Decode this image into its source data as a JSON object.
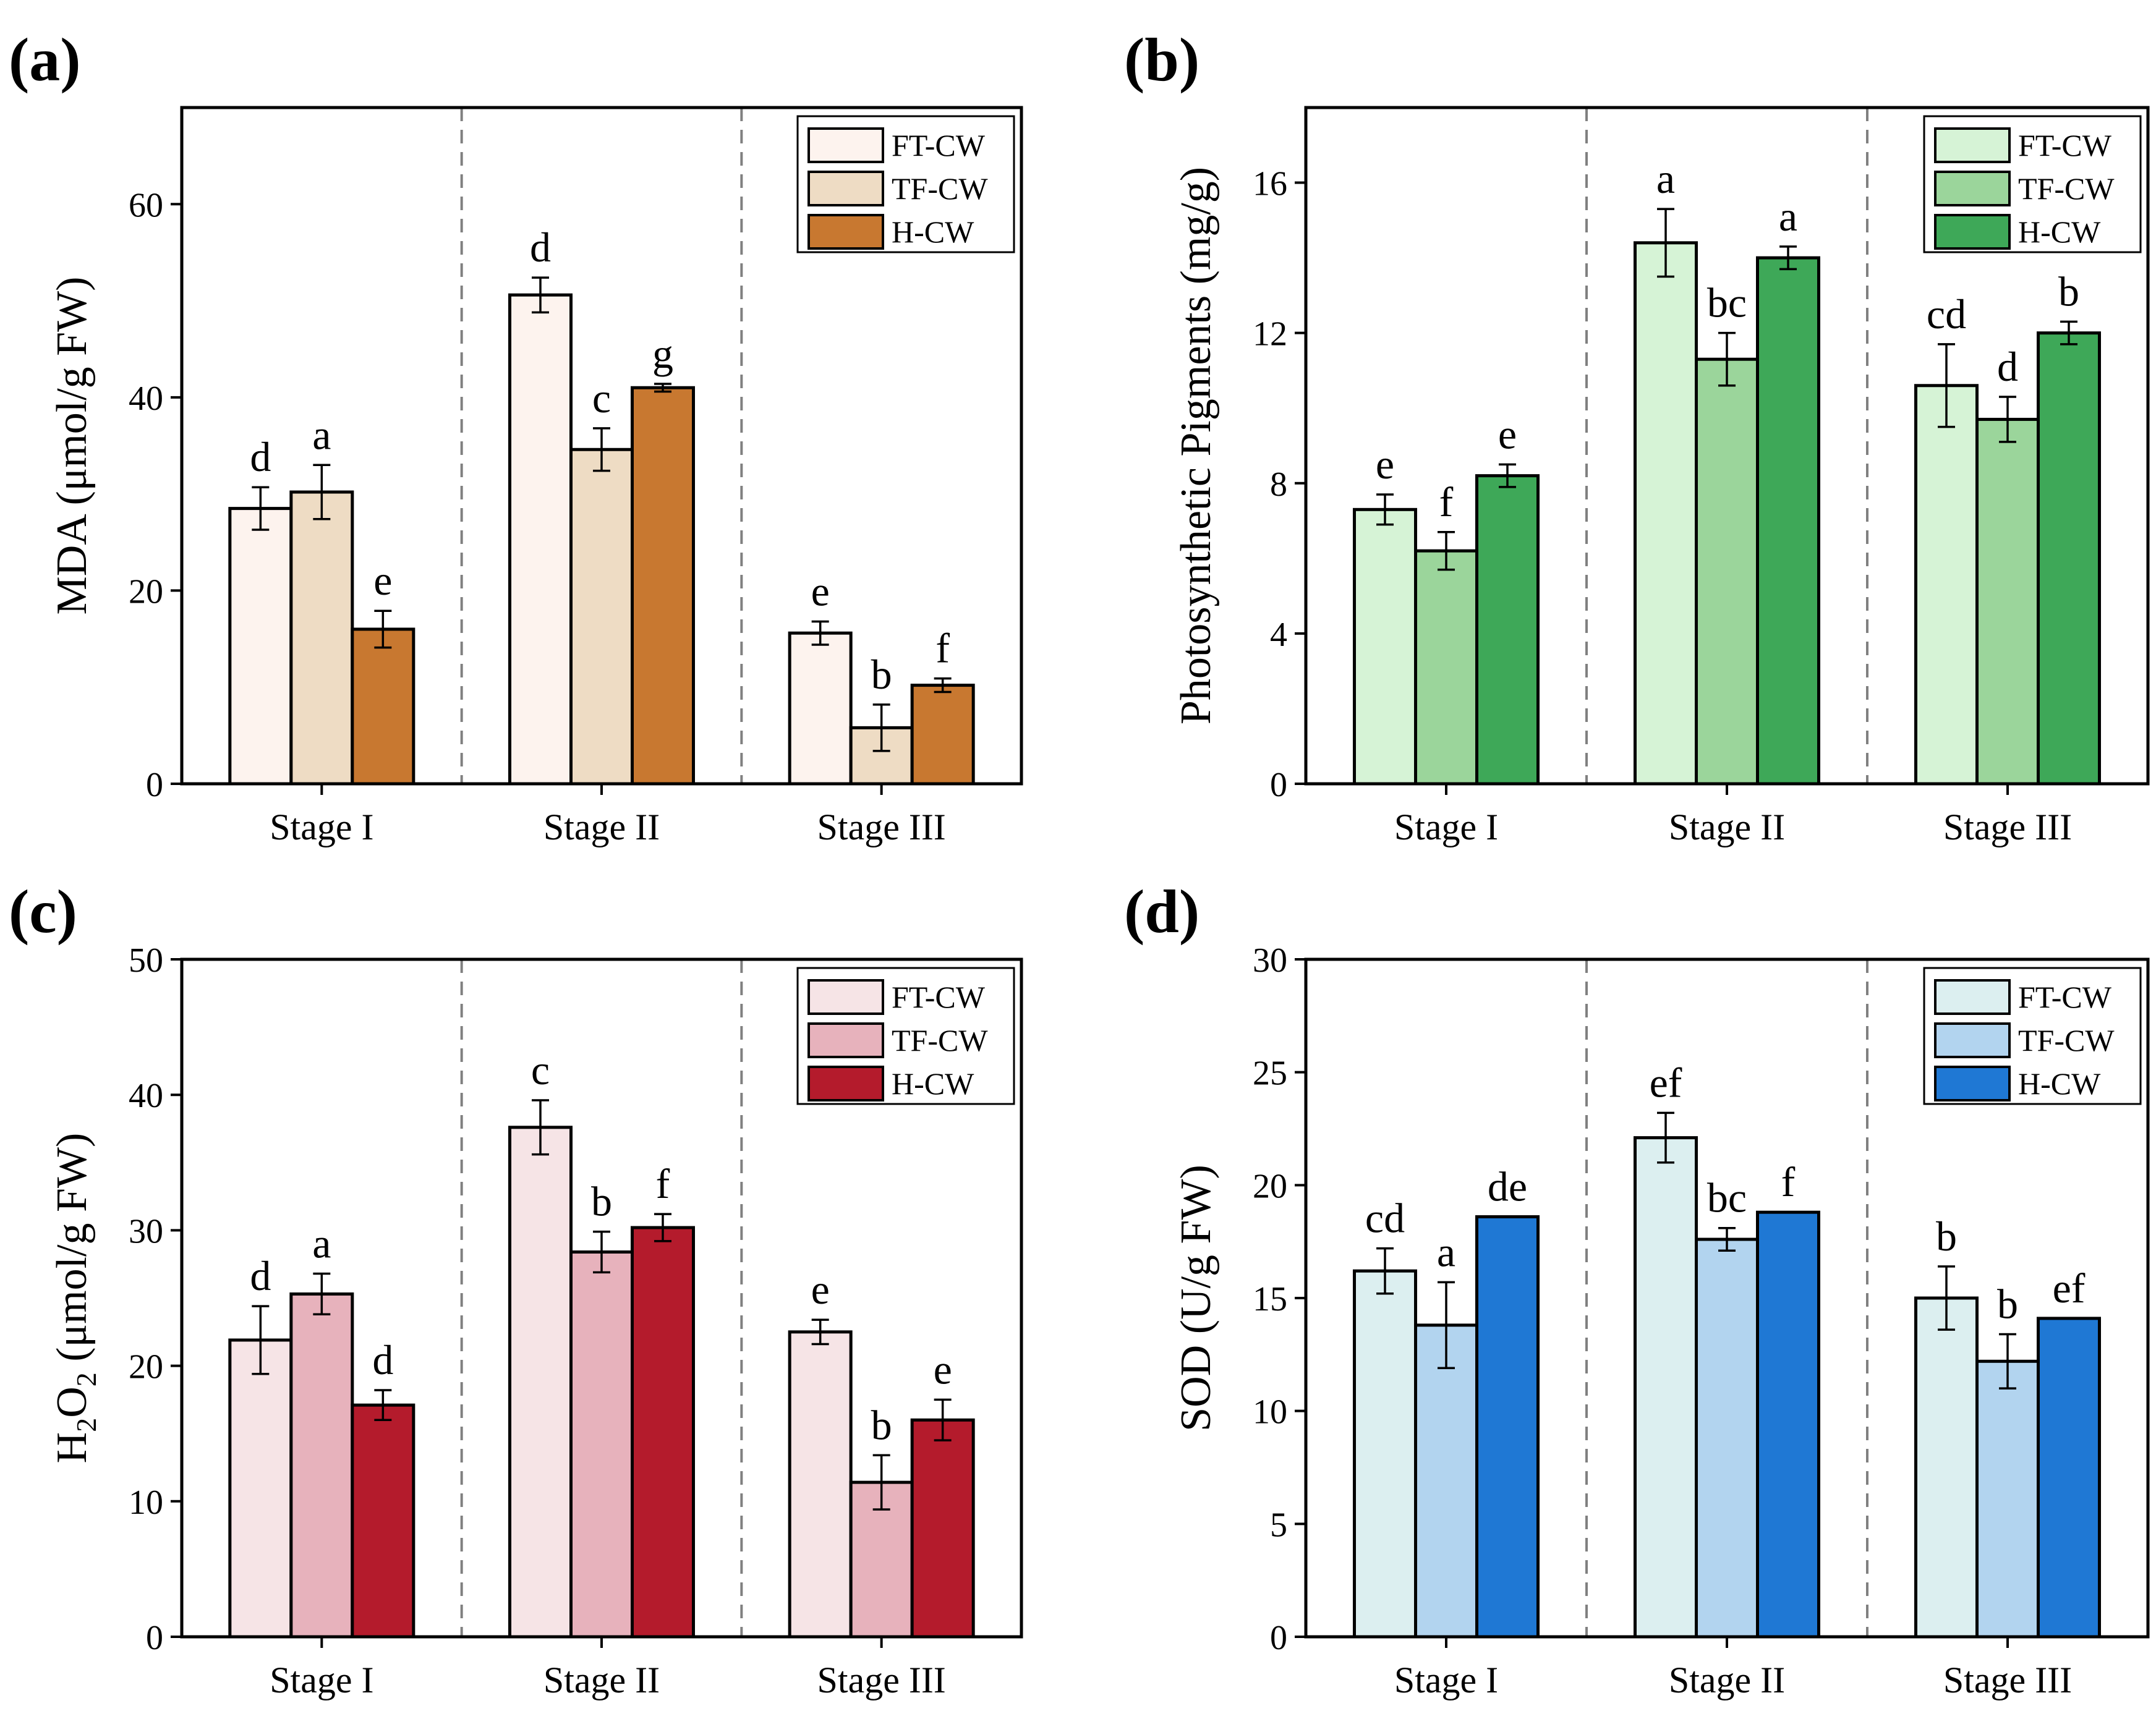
{
  "chart_data": [
    {
      "panel_label": "(a)",
      "type": "bar",
      "categories": [
        "Stage I",
        "Stage II",
        "Stage III"
      ],
      "ylabel": "MDA (μmol/g FW)",
      "ylabel_parts": [],
      "ylim": [
        0,
        70
      ],
      "yticks": [
        0,
        20,
        40,
        60
      ],
      "legend_position": "top-right",
      "series": [
        {
          "name": "FT-CW",
          "color": "#FDF3EE",
          "values": [
            28.5,
            50.6,
            15.6
          ],
          "errors": [
            2.2,
            1.8,
            1.2
          ],
          "letters": [
            "d",
            "d",
            "e"
          ]
        },
        {
          "name": "TF-CW",
          "color": "#EEDCC4",
          "values": [
            30.2,
            34.6,
            5.8
          ],
          "errors": [
            2.8,
            2.2,
            2.4
          ],
          "letters": [
            "a",
            "c",
            "b"
          ]
        },
        {
          "name": "H-CW",
          "color": "#C87830",
          "values": [
            16.0,
            41.0,
            10.2
          ],
          "errors": [
            1.9,
            0.4,
            0.7
          ],
          "letters": [
            "e",
            "g",
            "f"
          ]
        }
      ]
    },
    {
      "panel_label": "(b)",
      "type": "bar",
      "categories": [
        "Stage I",
        "Stage II",
        "Stage III"
      ],
      "ylabel": "Photosynthetic Pigments (mg/g)",
      "ylabel_parts": [],
      "ylim": [
        0,
        18
      ],
      "yticks": [
        0,
        4,
        8,
        12,
        16
      ],
      "legend_position": "top-right",
      "series": [
        {
          "name": "FT-CW",
          "color": "#D6F3D6",
          "values": [
            7.3,
            14.4,
            10.6
          ],
          "errors": [
            0.4,
            0.9,
            1.1
          ],
          "letters": [
            "e",
            "a",
            "cd"
          ]
        },
        {
          "name": "TF-CW",
          "color": "#9BD59B",
          "values": [
            6.2,
            11.3,
            9.7
          ],
          "errors": [
            0.5,
            0.7,
            0.6
          ],
          "letters": [
            "f",
            "bc",
            "d"
          ]
        },
        {
          "name": "H-CW",
          "color": "#3EA858",
          "values": [
            8.2,
            14.0,
            12.0
          ],
          "errors": [
            0.3,
            0.3,
            0.3
          ],
          "letters": [
            "e",
            "a",
            "b"
          ]
        }
      ]
    },
    {
      "panel_label": "(c)",
      "type": "bar",
      "categories": [
        "Stage I",
        "Stage II",
        "Stage III"
      ],
      "ylabel": "",
      "ylabel_parts": [
        "H",
        "2",
        "O",
        "2",
        " (μmol/g FW)"
      ],
      "ylim": [
        0,
        50
      ],
      "yticks": [
        0,
        10,
        20,
        30,
        40,
        50
      ],
      "legend_position": "top-right",
      "series": [
        {
          "name": "FT-CW",
          "color": "#F6E4E6",
          "values": [
            21.9,
            37.6,
            22.5
          ],
          "errors": [
            2.5,
            2.0,
            0.9
          ],
          "letters": [
            "d",
            "c",
            "e"
          ]
        },
        {
          "name": "TF-CW",
          "color": "#E7B2BC",
          "values": [
            25.3,
            28.4,
            11.4
          ],
          "errors": [
            1.5,
            1.5,
            2.0
          ],
          "letters": [
            "a",
            "b",
            "b"
          ]
        },
        {
          "name": "H-CW",
          "color": "#B41B2C",
          "values": [
            17.1,
            30.2,
            16.0
          ],
          "errors": [
            1.1,
            1.0,
            1.5
          ],
          "letters": [
            "d",
            "f",
            "e"
          ]
        }
      ]
    },
    {
      "panel_label": "(d)",
      "type": "bar",
      "categories": [
        "Stage I",
        "Stage II",
        "Stage III"
      ],
      "ylabel": "SOD (U/g FW)",
      "ylabel_parts": [],
      "ylim": [
        0,
        30
      ],
      "yticks": [
        0,
        5,
        10,
        15,
        20,
        25,
        30
      ],
      "legend_position": "top-right",
      "series": [
        {
          "name": "FT-CW",
          "color": "#DCEFF0",
          "values": [
            16.2,
            22.1,
            15.0
          ],
          "errors": [
            1.0,
            1.1,
            1.4
          ],
          "letters": [
            "cd",
            "ef",
            "b"
          ]
        },
        {
          "name": "TF-CW",
          "color": "#B2D4EF",
          "values": [
            13.8,
            17.6,
            12.2
          ],
          "errors": [
            1.9,
            0.5,
            1.2
          ],
          "letters": [
            "a",
            "bc",
            "b"
          ]
        },
        {
          "name": "H-CW",
          "color": "#1F78D4",
          "values": [
            18.6,
            18.8,
            14.1
          ],
          "errors": [
            0.0,
            0.0,
            0.0
          ],
          "letters": [
            "de",
            "f",
            "ef"
          ]
        }
      ]
    }
  ]
}
